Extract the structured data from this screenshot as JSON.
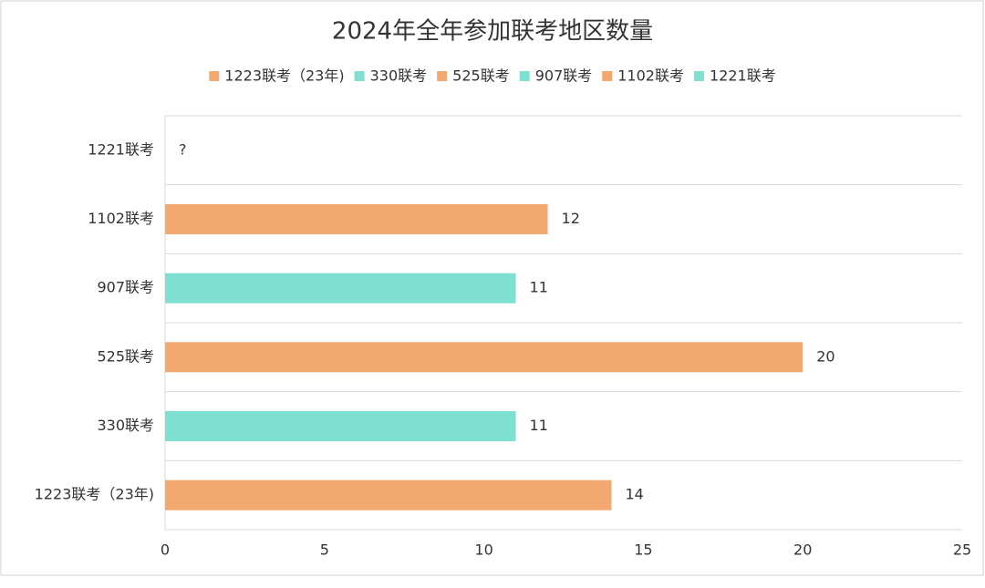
{
  "chart_data": {
    "type": "bar",
    "orientation": "horizontal",
    "title": "2024年全年参加联考地区数量",
    "categories": [
      "1223联考（23年)",
      "330联考",
      "525联考",
      "907联考",
      "1102联考",
      "1221联考"
    ],
    "values": [
      14,
      11,
      20,
      11,
      12,
      null
    ],
    "value_labels": [
      null,
      null,
      null,
      null,
      null,
      "?"
    ],
    "colors": [
      "#f2a86f",
      "#7fdfd1",
      "#f2a86f",
      "#7fdfd1",
      "#f2a86f",
      "#7fdfd1"
    ],
    "xlim": [
      0,
      25
    ],
    "xticks": [
      0,
      5,
      10,
      15,
      20,
      25
    ],
    "legend": "top"
  }
}
